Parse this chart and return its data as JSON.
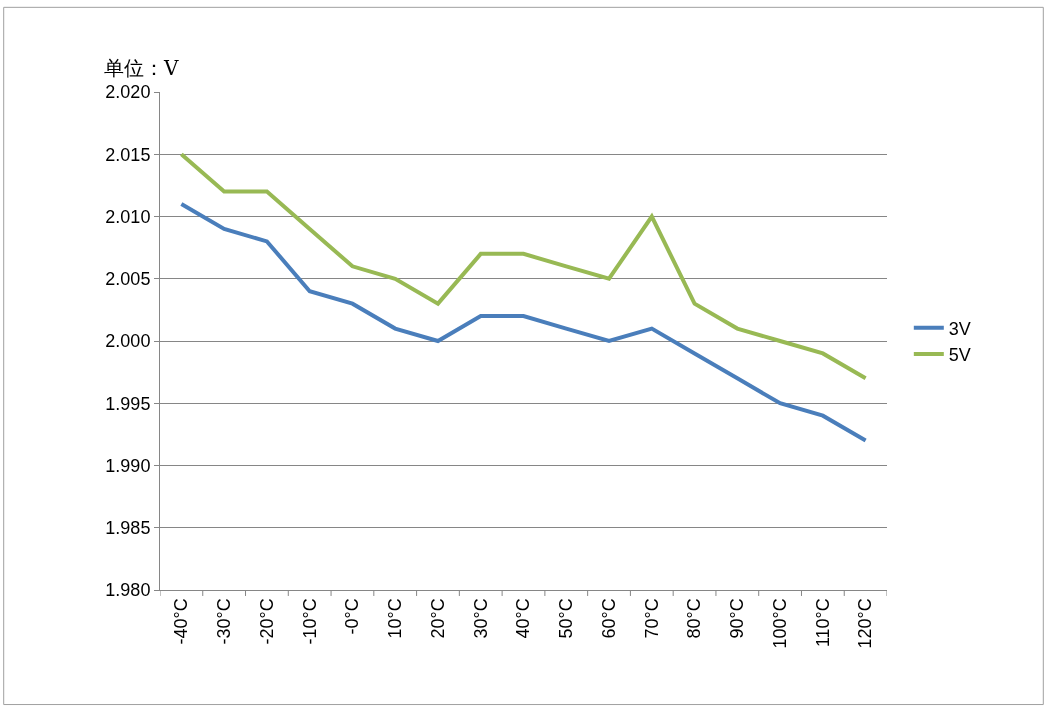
{
  "chart_data": {
    "type": "line",
    "ylabel": "单位：V",
    "categories": [
      "-40°C",
      "-30°C",
      "-20°C",
      "-10°C",
      "-0°C",
      "10°C",
      "20°C",
      "30°C",
      "40°C",
      "50°C",
      "60°C",
      "70°C",
      "80°C",
      "90°C",
      "100°C",
      "110°C",
      "120°C"
    ],
    "series": [
      {
        "name": "3V",
        "color": "#4a7ebb",
        "values": [
          2.011,
          2.009,
          2.008,
          2.004,
          2.003,
          2.001,
          2.0,
          2.002,
          2.002,
          2.001,
          2.0,
          2.001,
          1.999,
          1.997,
          1.995,
          1.994,
          1.992
        ]
      },
      {
        "name": "5V",
        "color": "#98b954",
        "values": [
          2.015,
          2.012,
          2.012,
          2.009,
          2.006,
          2.005,
          2.003,
          2.007,
          2.007,
          2.006,
          2.005,
          2.01,
          2.003,
          2.001,
          2.0,
          1.999,
          1.997
        ]
      }
    ],
    "ylim": [
      1.98,
      2.02
    ],
    "yticks": [
      {
        "value": 1.98,
        "label": "1.980"
      },
      {
        "value": 1.985,
        "label": "1.985"
      },
      {
        "value": 1.99,
        "label": "1.990"
      },
      {
        "value": 1.995,
        "label": "1.995"
      },
      {
        "value": 2.0,
        "label": "2.000"
      },
      {
        "value": 2.005,
        "label": "2.005"
      },
      {
        "value": 2.01,
        "label": "2.010"
      },
      {
        "value": 2.015,
        "label": "2.015"
      },
      {
        "value": 2.02,
        "label": "2.020"
      }
    ],
    "grid": "y",
    "legend": "right",
    "marker": "none",
    "line_style": "solid"
  }
}
